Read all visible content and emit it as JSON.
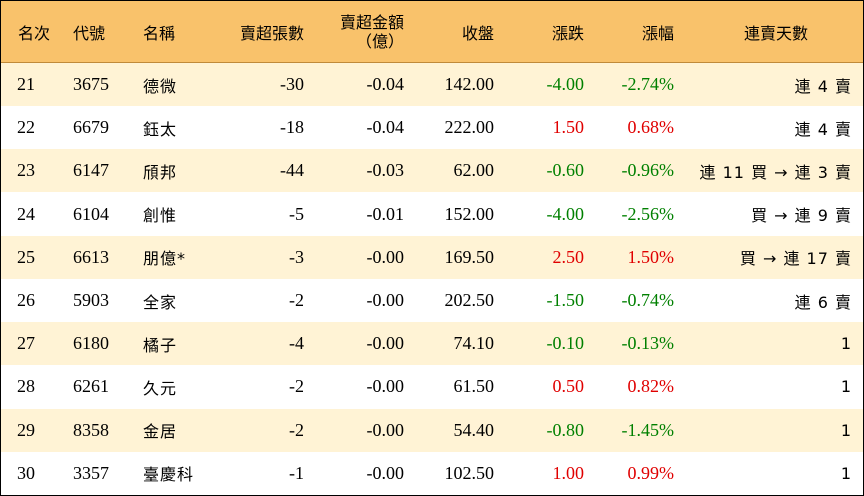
{
  "colors": {
    "header_bg": "#F9C26B",
    "stripe_bg": "#FFF3D5",
    "up": "#E00000",
    "down": "#008000"
  },
  "header": {
    "rank": "名次",
    "code": "代號",
    "name": "名稱",
    "sell_lots": "賣超張數",
    "sell_amount_line1": "賣超金額",
    "sell_amount_line2": "（億）",
    "close": "收盤",
    "change": "漲跌",
    "change_pct": "漲幅",
    "streak": "連賣天數"
  },
  "rows": [
    {
      "rank": "21",
      "code": "3675",
      "name": "德微",
      "sell_lots": "-30",
      "sell_amount": "-0.04",
      "close": "142.00",
      "change": "-4.00",
      "change_pct": "-2.74%",
      "direction": "down",
      "streak": "連 4 賣"
    },
    {
      "rank": "22",
      "code": "6679",
      "name": "鈺太",
      "sell_lots": "-18",
      "sell_amount": "-0.04",
      "close": "222.00",
      "change": "1.50",
      "change_pct": "0.68%",
      "direction": "up",
      "streak": "連 4 賣"
    },
    {
      "rank": "23",
      "code": "6147",
      "name": "頎邦",
      "sell_lots": "-44",
      "sell_amount": "-0.03",
      "close": "62.00",
      "change": "-0.60",
      "change_pct": "-0.96%",
      "direction": "down",
      "streak": "連 11 買 → 連 3 賣"
    },
    {
      "rank": "24",
      "code": "6104",
      "name": "創惟",
      "sell_lots": "-5",
      "sell_amount": "-0.01",
      "close": "152.00",
      "change": "-4.00",
      "change_pct": "-2.56%",
      "direction": "down",
      "streak": "買 → 連 9 賣"
    },
    {
      "rank": "25",
      "code": "6613",
      "name": "朋億*",
      "sell_lots": "-3",
      "sell_amount": "-0.00",
      "close": "169.50",
      "change": "2.50",
      "change_pct": "1.50%",
      "direction": "up",
      "streak": "買 → 連 17 賣"
    },
    {
      "rank": "26",
      "code": "5903",
      "name": "全家",
      "sell_lots": "-2",
      "sell_amount": "-0.00",
      "close": "202.50",
      "change": "-1.50",
      "change_pct": "-0.74%",
      "direction": "down",
      "streak": "連 6 賣"
    },
    {
      "rank": "27",
      "code": "6180",
      "name": "橘子",
      "sell_lots": "-4",
      "sell_amount": "-0.00",
      "close": "74.10",
      "change": "-0.10",
      "change_pct": "-0.13%",
      "direction": "down",
      "streak": "1"
    },
    {
      "rank": "28",
      "code": "6261",
      "name": "久元",
      "sell_lots": "-2",
      "sell_amount": "-0.00",
      "close": "61.50",
      "change": "0.50",
      "change_pct": "0.82%",
      "direction": "up",
      "streak": "1"
    },
    {
      "rank": "29",
      "code": "8358",
      "name": "金居",
      "sell_lots": "-2",
      "sell_amount": "-0.00",
      "close": "54.40",
      "change": "-0.80",
      "change_pct": "-1.45%",
      "direction": "down",
      "streak": "1"
    },
    {
      "rank": "30",
      "code": "3357",
      "name": "臺慶科",
      "sell_lots": "-1",
      "sell_amount": "-0.00",
      "close": "102.50",
      "change": "1.00",
      "change_pct": "0.99%",
      "direction": "up",
      "streak": "1"
    }
  ]
}
